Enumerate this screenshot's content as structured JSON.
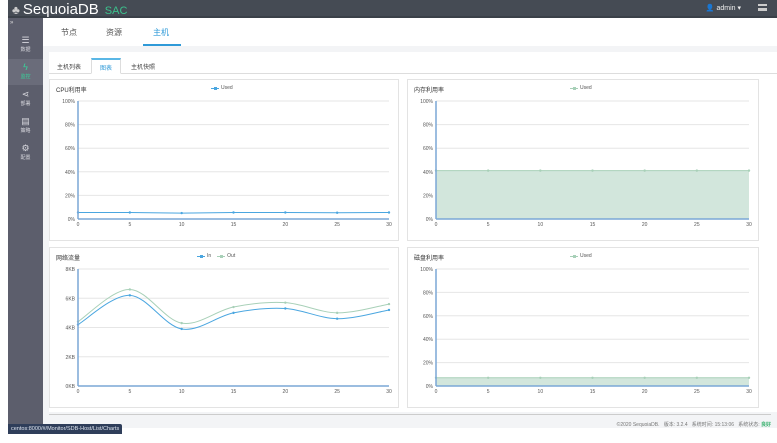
{
  "header": {
    "brand": "SequoiaDB",
    "brand_suffix": "SAC",
    "user": "admin",
    "user_caret": "▾"
  },
  "sidebar": {
    "expand_icon": "»",
    "items": [
      {
        "label": "数据",
        "icon": "database-icon",
        "glyph": "☰"
      },
      {
        "label": "监控",
        "icon": "lightning-icon",
        "glyph": "ϟ"
      },
      {
        "label": "部署",
        "icon": "share-icon",
        "glyph": "⋖"
      },
      {
        "label": "策略",
        "icon": "server-icon",
        "glyph": "▤"
      },
      {
        "label": "配置",
        "icon": "gears-icon",
        "glyph": "⚙"
      }
    ],
    "active": 1
  },
  "tabs": [
    "节点",
    "资源",
    "主机"
  ],
  "subtabs": [
    "主机列表",
    "图表",
    "主机快照"
  ],
  "colors": {
    "blue": "#4aa6e0",
    "green": "#a8d0b8",
    "fill": "#d2e6dc",
    "accent": "#2f9ad8"
  },
  "chart_data": [
    {
      "type": "line",
      "title": "CPU利用率",
      "x": [
        0,
        5,
        10,
        15,
        20,
        25,
        30
      ],
      "ylim": [
        0,
        100
      ],
      "yticks": [
        "0%",
        "20%",
        "40%",
        "60%",
        "80%",
        "100%"
      ],
      "xticks": [
        "0",
        "5",
        "10",
        "15",
        "20",
        "25",
        "30"
      ],
      "smooth": false,
      "series": [
        {
          "name": "Used",
          "color": "#4aa6e0",
          "values": [
            5.5,
            5.5,
            5,
            5.5,
            5.5,
            5.3,
            5.5
          ]
        }
      ]
    },
    {
      "type": "area",
      "title": "内存利用率",
      "x": [
        0,
        5,
        10,
        15,
        20,
        25,
        30
      ],
      "ylim": [
        0,
        100
      ],
      "yticks": [
        "0%",
        "20%",
        "40%",
        "60%",
        "80%",
        "100%"
      ],
      "xticks": [
        "0",
        "5",
        "10",
        "15",
        "20",
        "25",
        "30"
      ],
      "smooth": false,
      "series": [
        {
          "name": "Used",
          "color": "#a8d0b8",
          "fill": "#d2e6dc",
          "values": [
            41,
            41,
            41,
            41,
            41,
            41,
            41
          ]
        }
      ]
    },
    {
      "type": "line",
      "title": "网络流量",
      "x": [
        0,
        5,
        10,
        15,
        20,
        25,
        30
      ],
      "ylim": [
        0,
        8
      ],
      "yticks": [
        "0KB",
        "2KB",
        "4KB",
        "6KB",
        "8KB"
      ],
      "xticks": [
        "0",
        "5",
        "10",
        "15",
        "20",
        "25",
        "30"
      ],
      "smooth": true,
      "series": [
        {
          "name": "In",
          "color": "#4aa6e0",
          "values": [
            4.2,
            6.2,
            3.9,
            5.0,
            5.3,
            4.6,
            5.2
          ]
        },
        {
          "name": "Out",
          "color": "#a8d0b8",
          "values": [
            4.4,
            6.6,
            4.3,
            5.4,
            5.7,
            5.0,
            5.6
          ]
        }
      ]
    },
    {
      "type": "area",
      "title": "磁盘利用率",
      "x": [
        0,
        5,
        10,
        15,
        20,
        25,
        30
      ],
      "ylim": [
        0,
        100
      ],
      "yticks": [
        "0%",
        "20%",
        "40%",
        "60%",
        "80%",
        "100%"
      ],
      "xticks": [
        "0",
        "5",
        "10",
        "15",
        "20",
        "25",
        "30"
      ],
      "smooth": false,
      "series": [
        {
          "name": "Used",
          "color": "#a8d0b8",
          "fill": "#d2e6dc",
          "values": [
            7,
            7,
            7,
            7,
            7,
            7,
            7
          ]
        }
      ]
    }
  ],
  "footer": {
    "copyright": "©2020 SequoiaDB.",
    "version_label": "版本:",
    "version": "3.2.4",
    "time_label": "系统时间:",
    "time": "15:13:06",
    "status_label": "系统状态:",
    "status": "良好"
  },
  "status_url": "centos:8000/#/Monitor/SDB-Host/List/Charts"
}
